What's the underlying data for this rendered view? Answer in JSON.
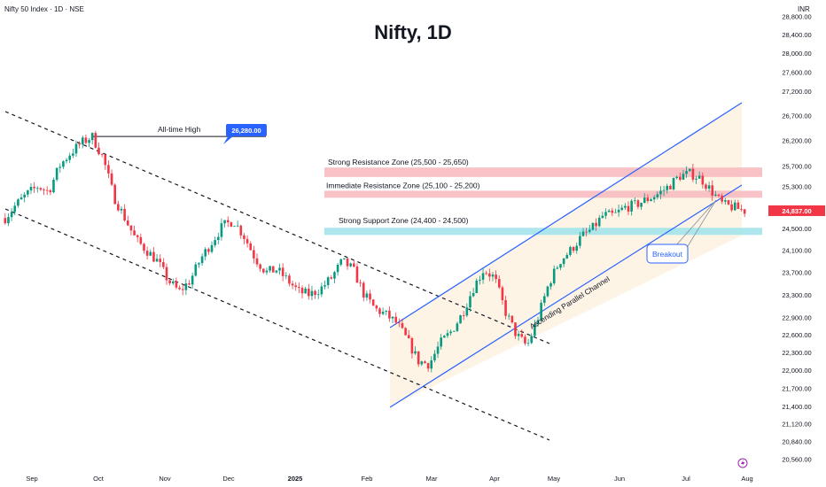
{
  "header": {
    "symbol_info": "Nifty 50 Index · 1D · NSE",
    "title": "Nifty, 1D",
    "currency": "INR"
  },
  "colors": {
    "up": "#089981",
    "down": "#f23645",
    "channel": "#2962ff",
    "trendline": "#131722",
    "resistance_zone": "#f7b7bd",
    "support_zone": "#9fe3ea",
    "channel_fill": "#fdf3e3",
    "last_price": "#f23645",
    "label_fill": "#2962ff"
  },
  "chart_data": {
    "type": "candlestick",
    "title": "Nifty, 1D",
    "x_ticks": [
      "Sep",
      "Oct",
      "Nov",
      "Dec",
      "2025",
      "Feb",
      "Mar",
      "Apr",
      "May",
      "Jun",
      "Jul",
      "Aug"
    ],
    "y_ticks": [
      "20,560.00",
      "20,840.00",
      "21,120.00",
      "21,400.00",
      "21,700.00",
      "22,000.00",
      "22,300.00",
      "22,600.00",
      "22,900.00",
      "23,300.00",
      "23,700.00",
      "24,100.00",
      "24,500.00",
      "24,900.00",
      "25,300.00",
      "25,700.00",
      "26,200.00",
      "26,700.00",
      "27,200.00",
      "27,600.00",
      "28,000.00",
      "28,400.00",
      "28,800.00"
    ],
    "ylim": [
      20400,
      29000
    ],
    "log_scale": true,
    "grid": false,
    "last_price": "24,837.00",
    "all_time_high": {
      "label": "All-time High",
      "value": "26,280.00"
    },
    "zones": [
      {
        "label": "Strong Resistance Zone (25,500 - 25,650)",
        "low": 25500,
        "high": 25650
      },
      {
        "label": "Immediate Resistance Zone (25,100 - 25,200)",
        "low": 25100,
        "high": 25200
      },
      {
        "label": "Strong Support Zone (24,400 - 24,500)",
        "low": 24400,
        "high": 24500
      }
    ],
    "annotations": {
      "channel_label": "Ascending Parallel Channel",
      "breakout_label": "Breakout"
    },
    "close_path": [
      24700,
      24950,
      25150,
      25300,
      25200,
      25700,
      25950,
      26150,
      26280,
      25850,
      25100,
      24700,
      24300,
      24100,
      23900,
      23550,
      23350,
      23550,
      23950,
      24250,
      24550,
      24650,
      24350,
      23950,
      23700,
      23750,
      23550,
      23350,
      23300,
      23400,
      23600,
      23900,
      23750,
      23300,
      23050,
      22950,
      22800,
      22500,
      22150,
      22100,
      22450,
      22650,
      22950,
      23400,
      23750,
      23600,
      23000,
      22600,
      22400,
      22900,
      23500,
      23900,
      24100,
      24350,
      24500,
      24750,
      24750,
      24900,
      24950,
      25050,
      25150,
      25300,
      25500,
      25550,
      25450,
      25200,
      24950,
      24900,
      24837
    ]
  }
}
